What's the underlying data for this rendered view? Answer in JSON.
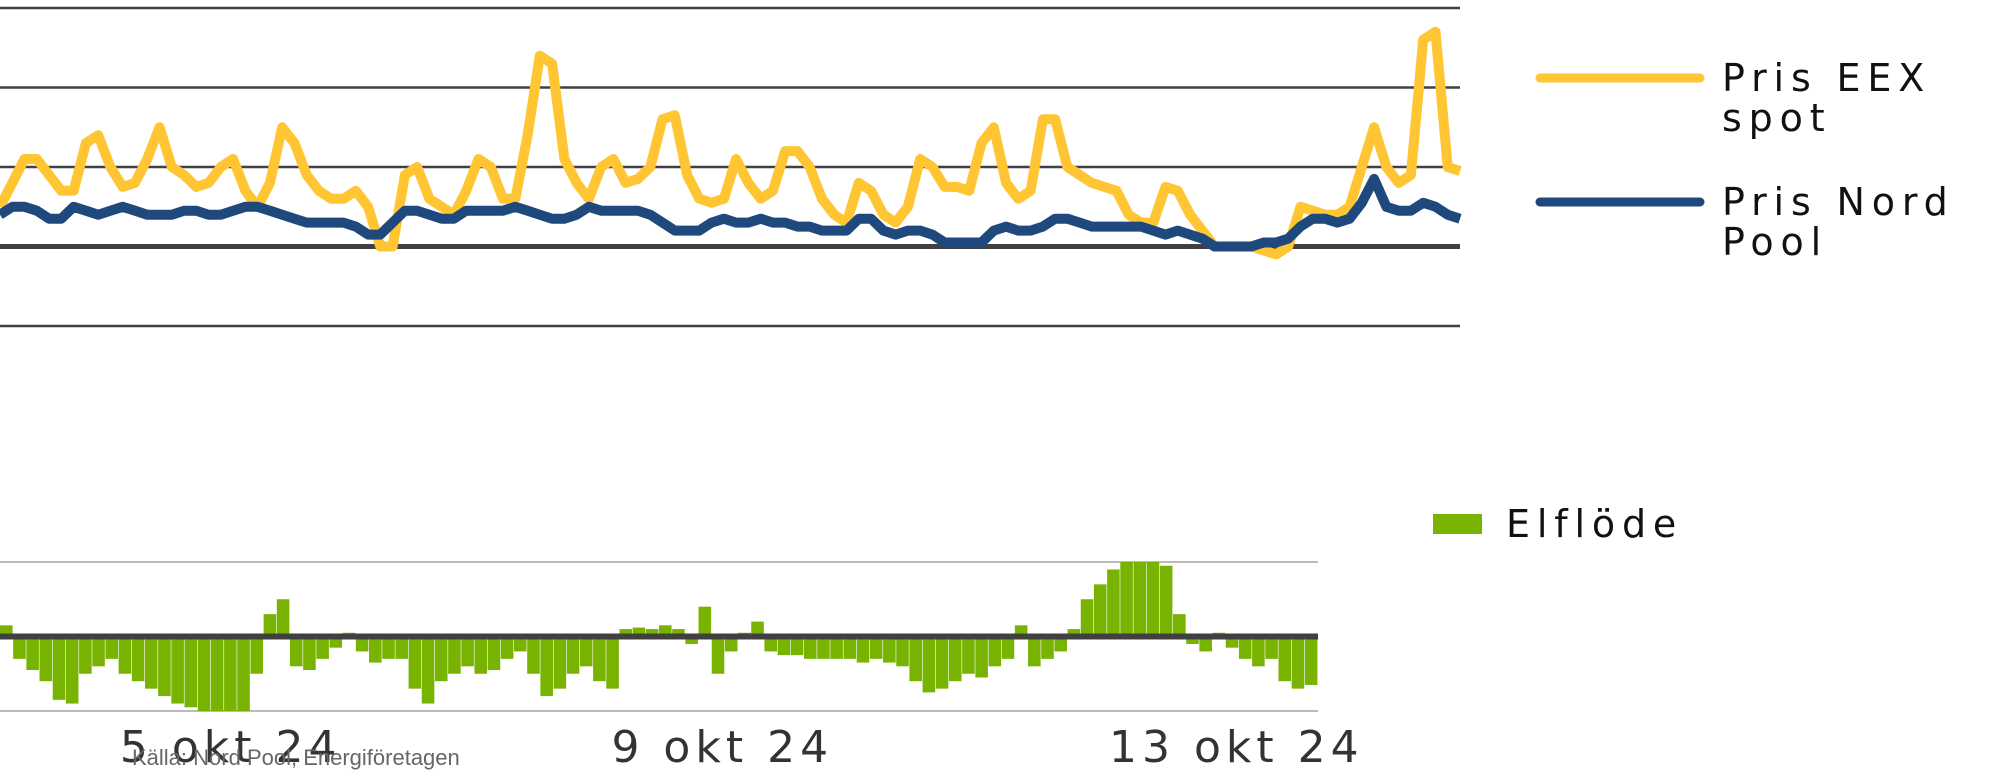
{
  "chart_data": [
    {
      "type": "line",
      "ylim": [
        -1,
        3
      ],
      "yticks": [
        -1,
        0,
        1,
        2,
        3
      ],
      "grid": true,
      "series": [
        {
          "name": "Pris EEX spot",
          "color": "#FFC533",
          "values": [
            0.5,
            0.8,
            1.1,
            1.1,
            0.9,
            0.7,
            0.7,
            1.3,
            1.4,
            1.0,
            0.75,
            0.8,
            1.1,
            1.5,
            1.0,
            0.9,
            0.75,
            0.8,
            1.0,
            1.1,
            0.7,
            0.5,
            0.8,
            1.5,
            1.3,
            0.9,
            0.7,
            0.6,
            0.6,
            0.7,
            0.5,
            0.0,
            0.0,
            0.9,
            1.0,
            0.6,
            0.5,
            0.4,
            0.7,
            1.1,
            1.0,
            0.6,
            0.6,
            1.4,
            2.4,
            2.3,
            1.1,
            0.8,
            0.6,
            1.0,
            1.1,
            0.8,
            0.85,
            1.0,
            1.6,
            1.65,
            0.9,
            0.6,
            0.55,
            0.6,
            1.1,
            0.8,
            0.6,
            0.7,
            1.2,
            1.2,
            1.0,
            0.6,
            0.4,
            0.3,
            0.8,
            0.7,
            0.4,
            0.3,
            0.5,
            1.1,
            1.0,
            0.75,
            0.75,
            0.7,
            1.3,
            1.5,
            0.8,
            0.6,
            0.7,
            1.6,
            1.6,
            1.0,
            0.9,
            0.8,
            0.75,
            0.7,
            0.4,
            0.3,
            0.3,
            0.75,
            0.7,
            0.4,
            0.2,
            0.0,
            0.0,
            0.0,
            0.0,
            -0.05,
            -0.1,
            0.0,
            0.5,
            0.45,
            0.4,
            0.4,
            0.5,
            1.0,
            1.5,
            1.0,
            0.8,
            0.9,
            2.6,
            2.7,
            1.0,
            0.95
          ]
        },
        {
          "name": "Pris Nord Pool",
          "color": "#1F497D",
          "values": [
            0.4,
            0.5,
            0.5,
            0.45,
            0.35,
            0.35,
            0.5,
            0.45,
            0.4,
            0.45,
            0.5,
            0.45,
            0.4,
            0.4,
            0.4,
            0.45,
            0.45,
            0.4,
            0.4,
            0.45,
            0.5,
            0.5,
            0.45,
            0.4,
            0.35,
            0.3,
            0.3,
            0.3,
            0.3,
            0.25,
            0.15,
            0.15,
            0.3,
            0.45,
            0.45,
            0.4,
            0.35,
            0.35,
            0.45,
            0.45,
            0.45,
            0.45,
            0.5,
            0.45,
            0.4,
            0.35,
            0.35,
            0.4,
            0.5,
            0.45,
            0.45,
            0.45,
            0.45,
            0.4,
            0.3,
            0.2,
            0.2,
            0.2,
            0.3,
            0.35,
            0.3,
            0.3,
            0.35,
            0.3,
            0.3,
            0.25,
            0.25,
            0.2,
            0.2,
            0.2,
            0.35,
            0.35,
            0.2,
            0.15,
            0.2,
            0.2,
            0.15,
            0.05,
            0.05,
            0.05,
            0.05,
            0.2,
            0.25,
            0.2,
            0.2,
            0.25,
            0.35,
            0.35,
            0.3,
            0.25,
            0.25,
            0.25,
            0.25,
            0.25,
            0.2,
            0.15,
            0.2,
            0.15,
            0.1,
            0.0,
            0.0,
            0.0,
            0.0,
            0.05,
            0.05,
            0.1,
            0.25,
            0.35,
            0.35,
            0.3,
            0.35,
            0.55,
            0.85,
            0.5,
            0.45,
            0.45,
            0.55,
            0.5,
            0.4,
            0.35
          ]
        }
      ]
    },
    {
      "type": "bar",
      "xlim": [
        0,
        100
      ],
      "xticks": [
        {
          "value": 17.5,
          "label": "5 okt 24"
        },
        {
          "value": 54.8,
          "label": "9 okt 24"
        },
        {
          "value": 93.8,
          "label": "13 okt 24"
        }
      ],
      "ylim": [
        -1,
        1
      ],
      "yticks": [
        -1,
        0,
        1
      ],
      "grid": true,
      "series": [
        {
          "name": "Elflöde",
          "color": "#77B300",
          "values": [
            0.15,
            -0.3,
            -0.45,
            -0.6,
            -0.85,
            -0.9,
            -0.5,
            -0.4,
            -0.3,
            -0.5,
            -0.6,
            -0.7,
            -0.8,
            -0.9,
            -0.95,
            -1,
            -1,
            -1,
            -1,
            -0.5,
            0.3,
            0.5,
            -0.4,
            -0.45,
            -0.3,
            -0.15,
            0.05,
            -0.2,
            -0.35,
            -0.3,
            -0.3,
            -0.7,
            -0.9,
            -0.6,
            -0.5,
            -0.4,
            -0.5,
            -0.45,
            -0.3,
            -0.2,
            -0.5,
            -0.8,
            -0.7,
            -0.5,
            -0.4,
            -0.6,
            -0.7,
            0.1,
            0.12,
            0.1,
            0.15,
            0.1,
            -0.1,
            0.4,
            -0.5,
            -0.2,
            0.05,
            0.2,
            -0.2,
            -0.25,
            -0.25,
            -0.3,
            -0.3,
            -0.3,
            -0.3,
            -0.35,
            -0.3,
            -0.35,
            -0.4,
            -0.6,
            -0.75,
            -0.7,
            -0.6,
            -0.5,
            -0.55,
            -0.4,
            -0.3,
            0.15,
            -0.4,
            -0.3,
            -0.2,
            0.1,
            0.5,
            0.7,
            0.9,
            1,
            1,
            1,
            0.95,
            0.3,
            -0.1,
            -0.2,
            0.05,
            -0.15,
            -0.3,
            -0.4,
            -0.3,
            -0.6,
            -0.7,
            -0.65
          ]
        }
      ],
      "source": "Källa: Nord Pool, Energiföretagen"
    }
  ]
}
